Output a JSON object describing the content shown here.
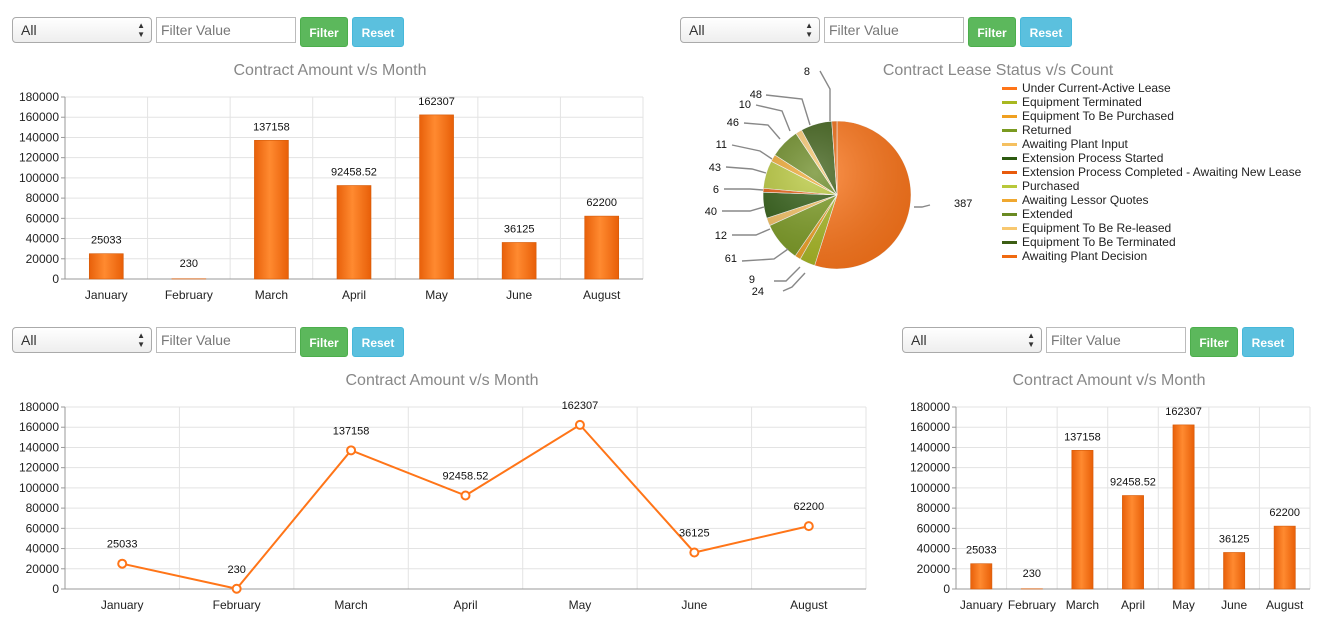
{
  "controls": [
    {
      "select_value": "All",
      "input_placeholder": "Filter Value",
      "filter_label": "Filter",
      "reset_label": "Reset"
    },
    {
      "select_value": "All",
      "input_placeholder": "Filter Value",
      "filter_label": "Filter",
      "reset_label": "Reset"
    },
    {
      "select_value": "All",
      "input_placeholder": "Filter Value",
      "filter_label": "Filter",
      "reset_label": "Reset"
    },
    {
      "select_value": "All",
      "input_placeholder": "Filter Value",
      "filter_label": "Filter",
      "reset_label": "Reset"
    }
  ],
  "colors": {
    "accent": "#ff7518",
    "filter": "#5cb85c",
    "reset": "#5bc0de"
  },
  "chart_data": [
    {
      "type": "bar",
      "title": "Contract Amount v/s Month",
      "categories": [
        "January",
        "February",
        "March",
        "April",
        "May",
        "June",
        "August"
      ],
      "values": [
        25033,
        230,
        137158,
        92458.52,
        162307,
        36125,
        62200
      ],
      "labels": [
        "25033",
        "230",
        "137158",
        "92458.52",
        "162307",
        "36125",
        "62200"
      ],
      "yticks": [
        0,
        20000,
        40000,
        60000,
        80000,
        100000,
        120000,
        140000,
        160000,
        180000
      ],
      "ylim": [
        0,
        180000
      ],
      "xlabel": "",
      "ylabel": "",
      "grid": true
    },
    {
      "type": "pie",
      "title": "Contract Lease Status v/s Count",
      "legend_position": "right",
      "slices": [
        {
          "label": "Under Current-Active Lease",
          "value": 387,
          "color": "#ff7518"
        },
        {
          "label": "Equipment Terminated",
          "value": 24,
          "color": "#a8b820"
        },
        {
          "label": "Equipment To Be Purchased",
          "value": 9,
          "color": "#f0a020"
        },
        {
          "label": "Returned",
          "value": 61,
          "color": "#7a9a20"
        },
        {
          "label": "Awaiting Plant Input",
          "value": 12,
          "color": "#f5c060"
        },
        {
          "label": "Extension Process Started",
          "value": 40,
          "color": "#2d5a10"
        },
        {
          "label": "Extension Process Completed - Awaiting New Lease",
          "value": 6,
          "color": "#e85a0c"
        },
        {
          "label": "Purchased",
          "value": 43,
          "color": "#b8c83a"
        },
        {
          "label": "Awaiting Lessor Quotes",
          "value": 11,
          "color": "#f0a830"
        },
        {
          "label": "Extended",
          "value": 46,
          "color": "#6a8a22"
        },
        {
          "label": "Equipment To Be Re-leased",
          "value": 10,
          "color": "#f8c870"
        },
        {
          "label": "Equipment To Be Terminated",
          "value": 48,
          "color": "#3c5e14"
        },
        {
          "label": "Awaiting Plant Decision",
          "value": 8,
          "color": "#f06a10"
        }
      ]
    },
    {
      "type": "line",
      "title": "Contract Amount v/s Month",
      "categories": [
        "January",
        "February",
        "March",
        "April",
        "May",
        "June",
        "August"
      ],
      "values": [
        25033,
        230,
        137158,
        92458.52,
        162307,
        36125,
        62200
      ],
      "labels": [
        "25033",
        "230",
        "137158",
        "92458.52",
        "162307",
        "36125",
        "62200"
      ],
      "yticks": [
        0,
        20000,
        40000,
        60000,
        80000,
        100000,
        120000,
        140000,
        160000,
        180000
      ],
      "ylim": [
        0,
        180000
      ],
      "xlabel": "",
      "ylabel": "",
      "grid": true
    },
    {
      "type": "bar",
      "title": "Contract Amount v/s Month",
      "categories": [
        "January",
        "February",
        "March",
        "April",
        "May",
        "June",
        "August"
      ],
      "values": [
        25033,
        230,
        137158,
        92458.52,
        162307,
        36125,
        62200
      ],
      "labels": [
        "25033",
        "230",
        "137158",
        "92458.52",
        "162307",
        "36125",
        "62200"
      ],
      "yticks": [
        0,
        20000,
        40000,
        60000,
        80000,
        100000,
        120000,
        140000,
        160000,
        180000
      ],
      "ylim": [
        0,
        180000
      ],
      "xlabel": "",
      "ylabel": "",
      "grid": true
    }
  ]
}
